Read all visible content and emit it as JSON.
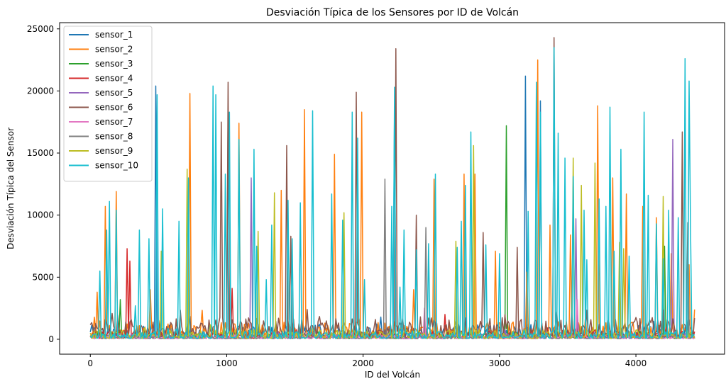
{
  "chart_data": {
    "type": "line",
    "title": "Desviación Típica de los Sensores por ID de Volcán",
    "xlabel": "ID del Volcán",
    "ylabel": "Desviación Típica del Sensor",
    "xlim": [
      -225,
      4650
    ],
    "ylim": [
      -1200,
      25500
    ],
    "xticks": [
      0,
      1000,
      2000,
      3000,
      4000
    ],
    "yticks": [
      0,
      5000,
      10000,
      15000,
      20000,
      25000
    ],
    "x_range": [
      0,
      4430
    ],
    "legend_position": "upper-left",
    "grid": false,
    "series": [
      {
        "name": "sensor_1",
        "color": "#1f77b4",
        "baseline": 800,
        "noise": 700,
        "spikes": [
          [
            480,
            20400
          ],
          [
            3190,
            21200
          ],
          [
            3300,
            19200
          ],
          [
            2230,
            18800
          ],
          [
            1010,
            18300
          ]
        ]
      },
      {
        "name": "sensor_2",
        "color": "#ff7f0e",
        "baseline": 900,
        "noise": 900,
        "spikes": [
          [
            50,
            3800
          ],
          [
            110,
            10700
          ],
          [
            190,
            11900
          ],
          [
            440,
            4000
          ],
          [
            730,
            19800
          ],
          [
            1090,
            17400
          ],
          [
            1400,
            12000
          ],
          [
            1570,
            18500
          ],
          [
            1790,
            14900
          ],
          [
            1990,
            18300
          ],
          [
            2370,
            4000
          ],
          [
            2520,
            12900
          ],
          [
            2740,
            13300
          ],
          [
            2820,
            13300
          ],
          [
            2970,
            7100
          ],
          [
            3200,
            5400
          ],
          [
            3280,
            22500
          ],
          [
            3370,
            9200
          ],
          [
            3520,
            8400
          ],
          [
            3720,
            18800
          ],
          [
            3830,
            13000
          ],
          [
            3930,
            11700
          ],
          [
            4050,
            10700
          ],
          [
            4150,
            9800
          ],
          [
            4260,
            6900
          ],
          [
            4390,
            6000
          ],
          [
            4430,
            2400
          ]
        ]
      },
      {
        "name": "sensor_3",
        "color": "#2ca02c",
        "baseline": 300,
        "noise": 300,
        "spikes": [
          [
            220,
            3200
          ],
          [
            3050,
            17200
          ],
          [
            3540,
            12300
          ],
          [
            4210,
            7500
          ]
        ]
      },
      {
        "name": "sensor_4",
        "color": "#d62728",
        "baseline": 400,
        "noise": 400,
        "spikes": [
          [
            270,
            7300
          ],
          [
            290,
            6300
          ],
          [
            1040,
            4100
          ],
          [
            2600,
            2000
          ]
        ]
      },
      {
        "name": "sensor_5",
        "color": "#9467bd",
        "baseline": 300,
        "noise": 300,
        "spikes": [
          [
            1180,
            13000
          ],
          [
            4270,
            16100
          ],
          [
            3560,
            9700
          ]
        ]
      },
      {
        "name": "sensor_6",
        "color": "#8c564b",
        "baseline": 1100,
        "noise": 1100,
        "spikes": [
          [
            960,
            17500
          ],
          [
            1010,
            20700
          ],
          [
            1440,
            15600
          ],
          [
            1470,
            8300
          ],
          [
            1950,
            19900
          ],
          [
            2240,
            23400
          ],
          [
            2390,
            10000
          ],
          [
            3130,
            7400
          ],
          [
            3400,
            24300
          ],
          [
            4340,
            16700
          ],
          [
            2880,
            8600
          ]
        ]
      },
      {
        "name": "sensor_7",
        "color": "#e377c2",
        "baseline": 200,
        "noise": 200,
        "spikes": [
          [
            2450,
            2500
          ],
          [
            3570,
            3200
          ]
        ]
      },
      {
        "name": "sensor_8",
        "color": "#7f7f7f",
        "baseline": 250,
        "noise": 250,
        "spikes": [
          [
            2160,
            12900
          ],
          [
            2460,
            9000
          ],
          [
            4380,
            9400
          ]
        ]
      },
      {
        "name": "sensor_9",
        "color": "#bcbd22",
        "baseline": 350,
        "noise": 500,
        "spikes": [
          [
            710,
            13700
          ],
          [
            520,
            7100
          ],
          [
            1230,
            8700
          ],
          [
            1350,
            11800
          ],
          [
            2810,
            15600
          ],
          [
            3540,
            14600
          ],
          [
            3600,
            12400
          ],
          [
            3880,
            7800
          ],
          [
            4200,
            11500
          ],
          [
            2680,
            7900
          ],
          [
            1860,
            10200
          ],
          [
            3700,
            14200
          ],
          [
            3910,
            7300
          ]
        ]
      },
      {
        "name": "sensor_10",
        "color": "#17becf",
        "baseline": 350,
        "noise": 400,
        "spikes": [
          [
            70,
            5500
          ],
          [
            120,
            8800
          ],
          [
            140,
            11100
          ],
          [
            190,
            10400
          ],
          [
            330,
            2700
          ],
          [
            360,
            8800
          ],
          [
            430,
            8100
          ],
          [
            490,
            19700
          ],
          [
            530,
            10500
          ],
          [
            650,
            9500
          ],
          [
            720,
            13000
          ],
          [
            900,
            20400
          ],
          [
            920,
            19700
          ],
          [
            990,
            13300
          ],
          [
            1020,
            18300
          ],
          [
            1090,
            16100
          ],
          [
            1200,
            15300
          ],
          [
            1220,
            7500
          ],
          [
            1290,
            4800
          ],
          [
            1330,
            9200
          ],
          [
            1450,
            11200
          ],
          [
            1480,
            8100
          ],
          [
            1540,
            11000
          ],
          [
            1630,
            18400
          ],
          [
            1770,
            11700
          ],
          [
            1850,
            9600
          ],
          [
            1920,
            18300
          ],
          [
            1960,
            16200
          ],
          [
            2010,
            4800
          ],
          [
            2210,
            10700
          ],
          [
            2230,
            20300
          ],
          [
            2270,
            4200
          ],
          [
            2300,
            8800
          ],
          [
            2390,
            7200
          ],
          [
            2480,
            7700
          ],
          [
            2530,
            13300
          ],
          [
            2690,
            7400
          ],
          [
            2720,
            9500
          ],
          [
            2750,
            12400
          ],
          [
            2790,
            16700
          ],
          [
            2900,
            7600
          ],
          [
            3000,
            6900
          ],
          [
            3210,
            10300
          ],
          [
            3270,
            20700
          ],
          [
            3300,
            18300
          ],
          [
            3400,
            23500
          ],
          [
            3430,
            16600
          ],
          [
            3480,
            14600
          ],
          [
            3540,
            13100
          ],
          [
            3620,
            10400
          ],
          [
            3640,
            6400
          ],
          [
            3730,
            11300
          ],
          [
            3780,
            10700
          ],
          [
            3810,
            18700
          ],
          [
            3840,
            7100
          ],
          [
            3890,
            15300
          ],
          [
            3950,
            6700
          ],
          [
            4060,
            18300
          ],
          [
            4090,
            11600
          ],
          [
            4150,
            9300
          ],
          [
            4200,
            6500
          ],
          [
            4240,
            10400
          ],
          [
            4310,
            9800
          ],
          [
            4360,
            22600
          ],
          [
            4390,
            20800
          ],
          [
            4400,
            9600
          ]
        ]
      }
    ]
  }
}
